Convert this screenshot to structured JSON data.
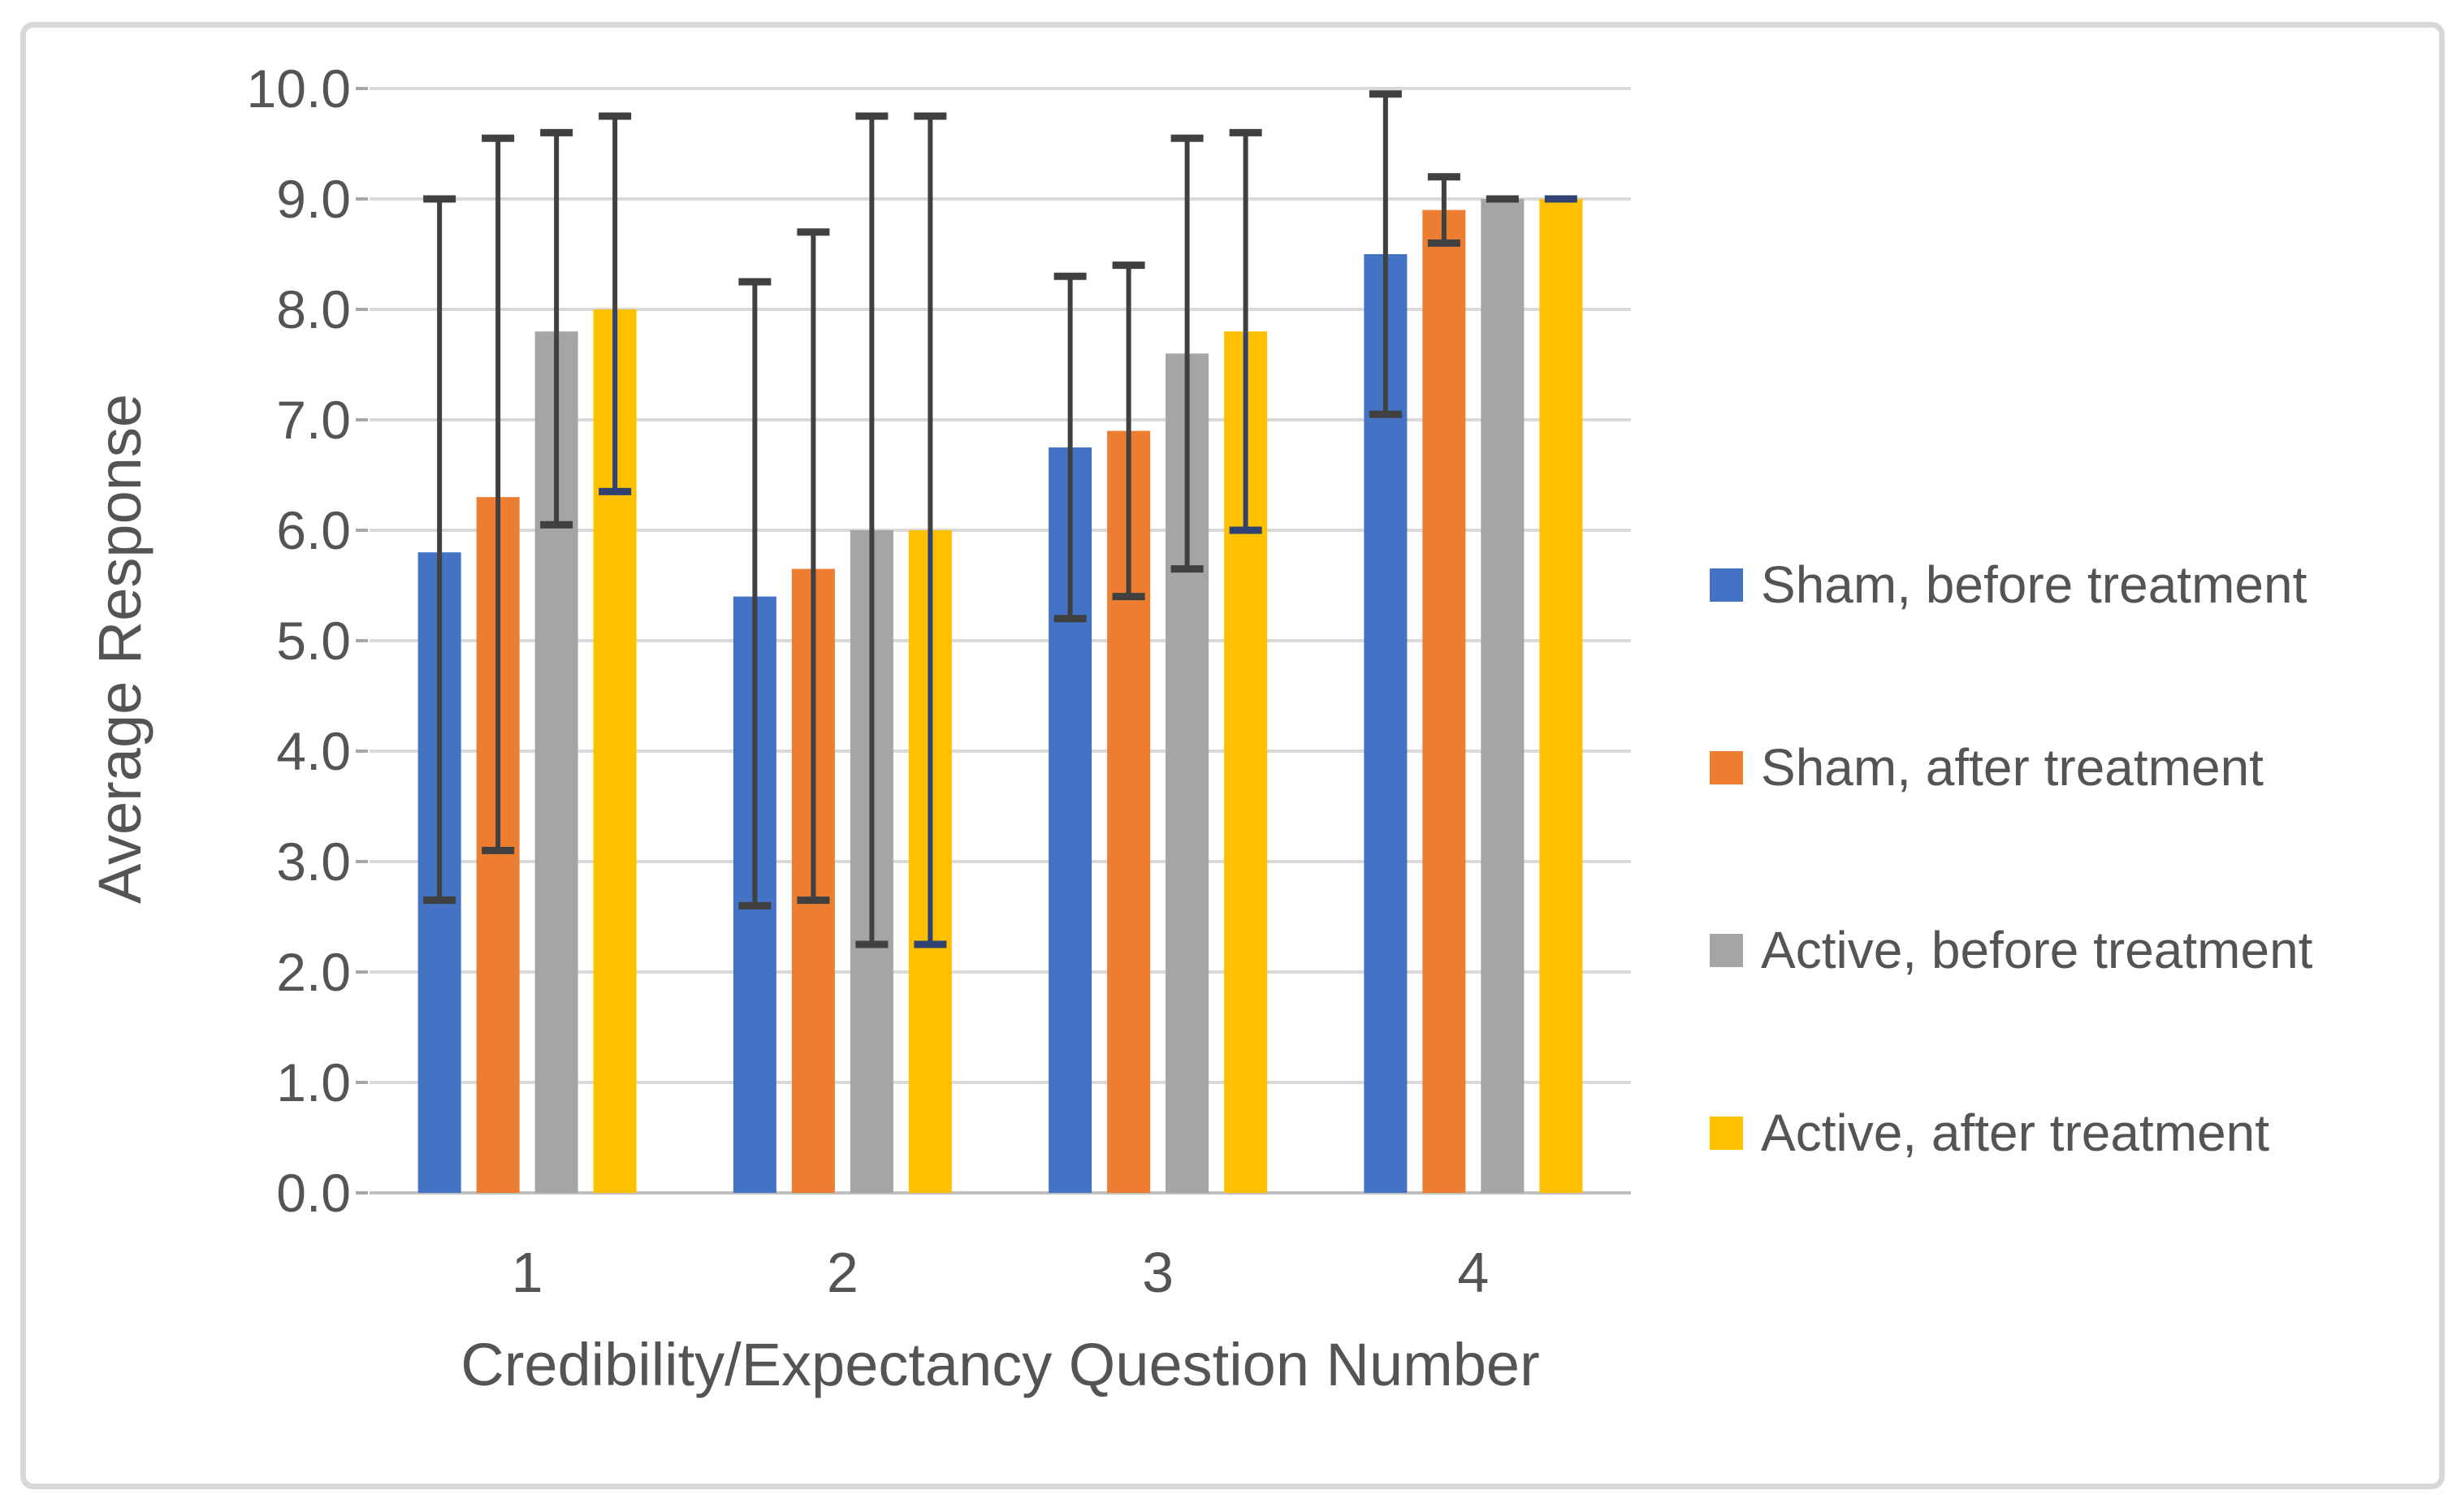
{
  "chart_data": {
    "type": "bar",
    "title": "",
    "xlabel": "Credibility/Expectancy Question Number",
    "ylabel": "Average Response",
    "categories": [
      "1",
      "2",
      "3",
      "4"
    ],
    "ylim": [
      0,
      10
    ],
    "y_tick_step": 1.0,
    "y_tick_labels": [
      "10.0",
      "9.0",
      "8.0",
      "7.0",
      "6.0",
      "5.0",
      "4.0",
      "3.0",
      "2.0",
      "1.0",
      "0.0"
    ],
    "grid": "horizontal",
    "legend_position": "right",
    "error_bars": true,
    "series": [
      {
        "name": "Sham, before treatment",
        "color": "#4472C4",
        "values": [
          5.8,
          5.4,
          6.75,
          8.5
        ],
        "error_low": [
          2.65,
          2.6,
          5.2,
          7.05
        ],
        "error_high": [
          9.0,
          8.25,
          8.3,
          9.95
        ],
        "error_color": "#404040"
      },
      {
        "name": "Sham, after treatment",
        "color": "#ED7D31",
        "values": [
          6.3,
          5.65,
          6.9,
          8.9
        ],
        "error_low": [
          3.1,
          2.65,
          5.4,
          8.6
        ],
        "error_high": [
          9.55,
          8.7,
          8.4,
          9.2
        ],
        "error_color": "#404040"
      },
      {
        "name": "Active, before treatment",
        "color": "#A5A5A5",
        "values": [
          7.8,
          6.0,
          7.6,
          9.0
        ],
        "error_low": [
          6.05,
          2.25,
          5.65,
          9.0
        ],
        "error_high": [
          9.6,
          9.75,
          9.55,
          9.0
        ],
        "error_color": "#404040"
      },
      {
        "name": "Active, after treatment",
        "color": "#FFC000",
        "values": [
          8.0,
          6.0,
          7.8,
          9.0
        ],
        "error_low": [
          6.35,
          2.25,
          6.0,
          9.0
        ],
        "error_high": [
          9.75,
          9.75,
          9.6,
          9.0
        ],
        "error_color": "#404040",
        "error_color_low": "#2F4272"
      }
    ]
  },
  "colors": {
    "gridline": "#D9D9D9",
    "axis_line": "#BFBFBF",
    "tick_mark": "#A6A6A6",
    "text": "#545454",
    "frame_border": "#D8D8D8",
    "background": "#FFFFFF"
  }
}
